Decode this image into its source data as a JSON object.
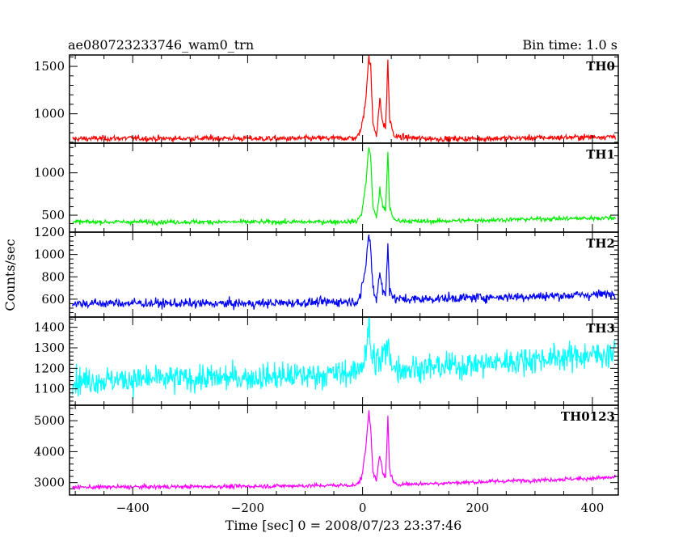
{
  "header": {
    "title": "ae080723233746_wam0_trn",
    "bin_time": "Bin time: 1.0 s"
  },
  "chart_data": {
    "type": "line",
    "xlabel": "Time [sec] 0 = 2008/07/23 23:37:46",
    "ylabel": "Counts/sec",
    "xlim": [
      -510,
      445
    ],
    "x_ticks": [
      -400,
      -200,
      0,
      200,
      400
    ],
    "panels": [
      {
        "name": "TH0",
        "color": "#ff0000",
        "ylim": [
          690,
          1620
        ],
        "y_ticks": [
          1000,
          1500
        ],
        "series": [
          {
            "x": -505,
            "y": 735
          },
          {
            "x": -450,
            "y": 740
          },
          {
            "x": -400,
            "y": 742
          },
          {
            "x": -350,
            "y": 738
          },
          {
            "x": -300,
            "y": 740
          },
          {
            "x": -250,
            "y": 742
          },
          {
            "x": -200,
            "y": 740
          },
          {
            "x": -150,
            "y": 738
          },
          {
            "x": -100,
            "y": 740
          },
          {
            "x": -50,
            "y": 742
          },
          {
            "x": -10,
            "y": 745
          },
          {
            "x": -2,
            "y": 850
          },
          {
            "x": 2,
            "y": 1000
          },
          {
            "x": 6,
            "y": 1200
          },
          {
            "x": 9,
            "y": 1450
          },
          {
            "x": 11,
            "y": 1600
          },
          {
            "x": 14,
            "y": 1500
          },
          {
            "x": 18,
            "y": 900
          },
          {
            "x": 24,
            "y": 780
          },
          {
            "x": 30,
            "y": 1150
          },
          {
            "x": 35,
            "y": 900
          },
          {
            "x": 40,
            "y": 850
          },
          {
            "x": 44,
            "y": 1550
          },
          {
            "x": 47,
            "y": 950
          },
          {
            "x": 55,
            "y": 760
          },
          {
            "x": 100,
            "y": 740
          },
          {
            "x": 150,
            "y": 735
          },
          {
            "x": 200,
            "y": 738
          },
          {
            "x": 250,
            "y": 742
          },
          {
            "x": 300,
            "y": 745
          },
          {
            "x": 350,
            "y": 750
          },
          {
            "x": 400,
            "y": 755
          },
          {
            "x": 440,
            "y": 760
          }
        ],
        "noise": 25
      },
      {
        "name": "TH1",
        "color": "#00ee00",
        "ylim": [
          300,
          1350
        ],
        "y_ticks": [
          500,
          1000
        ],
        "series": [
          {
            "x": -505,
            "y": 420
          },
          {
            "x": -400,
            "y": 420
          },
          {
            "x": -300,
            "y": 420
          },
          {
            "x": -200,
            "y": 420
          },
          {
            "x": -100,
            "y": 420
          },
          {
            "x": -10,
            "y": 425
          },
          {
            "x": -2,
            "y": 520
          },
          {
            "x": 2,
            "y": 680
          },
          {
            "x": 6,
            "y": 900
          },
          {
            "x": 9,
            "y": 1150
          },
          {
            "x": 11,
            "y": 1300
          },
          {
            "x": 14,
            "y": 1200
          },
          {
            "x": 18,
            "y": 600
          },
          {
            "x": 24,
            "y": 470
          },
          {
            "x": 30,
            "y": 800
          },
          {
            "x": 35,
            "y": 600
          },
          {
            "x": 40,
            "y": 550
          },
          {
            "x": 44,
            "y": 1250
          },
          {
            "x": 47,
            "y": 600
          },
          {
            "x": 55,
            "y": 440
          },
          {
            "x": 100,
            "y": 425
          },
          {
            "x": 200,
            "y": 440
          },
          {
            "x": 300,
            "y": 455
          },
          {
            "x": 400,
            "y": 465
          },
          {
            "x": 440,
            "y": 470
          }
        ],
        "noise": 22
      },
      {
        "name": "TH2",
        "color": "#0000ff",
        "ylim": [
          440,
          1200
        ],
        "y_ticks": [
          600,
          800,
          1000,
          1200
        ],
        "series": [
          {
            "x": -505,
            "y": 560
          },
          {
            "x": -400,
            "y": 565
          },
          {
            "x": -300,
            "y": 560
          },
          {
            "x": -200,
            "y": 560
          },
          {
            "x": -100,
            "y": 570
          },
          {
            "x": -10,
            "y": 580
          },
          {
            "x": -2,
            "y": 650
          },
          {
            "x": 2,
            "y": 780
          },
          {
            "x": 6,
            "y": 920
          },
          {
            "x": 9,
            "y": 1100
          },
          {
            "x": 11,
            "y": 1190
          },
          {
            "x": 14,
            "y": 1050
          },
          {
            "x": 18,
            "y": 700
          },
          {
            "x": 24,
            "y": 600
          },
          {
            "x": 30,
            "y": 850
          },
          {
            "x": 35,
            "y": 680
          },
          {
            "x": 40,
            "y": 620
          },
          {
            "x": 44,
            "y": 1100
          },
          {
            "x": 47,
            "y": 700
          },
          {
            "x": 55,
            "y": 600
          },
          {
            "x": 100,
            "y": 600
          },
          {
            "x": 200,
            "y": 615
          },
          {
            "x": 300,
            "y": 625
          },
          {
            "x": 400,
            "y": 640
          },
          {
            "x": 440,
            "y": 650
          }
        ],
        "noise": 35
      },
      {
        "name": "TH3",
        "color": "#00ffff",
        "ylim": [
          1020,
          1450
        ],
        "y_ticks": [
          1100,
          1200,
          1300,
          1400
        ],
        "series": [
          {
            "x": -505,
            "y": 1140
          },
          {
            "x": -400,
            "y": 1145
          },
          {
            "x": -300,
            "y": 1150
          },
          {
            "x": -200,
            "y": 1155
          },
          {
            "x": -100,
            "y": 1165
          },
          {
            "x": -10,
            "y": 1180
          },
          {
            "x": 2,
            "y": 1250
          },
          {
            "x": 9,
            "y": 1350
          },
          {
            "x": 11,
            "y": 1400
          },
          {
            "x": 16,
            "y": 1250
          },
          {
            "x": 30,
            "y": 1230
          },
          {
            "x": 44,
            "y": 1300
          },
          {
            "x": 55,
            "y": 1200
          },
          {
            "x": 100,
            "y": 1200
          },
          {
            "x": 200,
            "y": 1220
          },
          {
            "x": 300,
            "y": 1245
          },
          {
            "x": 400,
            "y": 1265
          },
          {
            "x": 440,
            "y": 1275
          }
        ],
        "noise": 55
      },
      {
        "name": "TH0123",
        "color": "#ff00ff",
        "ylim": [
          2600,
          5500
        ],
        "y_ticks": [
          3000,
          4000,
          5000
        ],
        "series": [
          {
            "x": -505,
            "y": 2850
          },
          {
            "x": -400,
            "y": 2860
          },
          {
            "x": -300,
            "y": 2870
          },
          {
            "x": -200,
            "y": 2880
          },
          {
            "x": -100,
            "y": 2900
          },
          {
            "x": -10,
            "y": 2920
          },
          {
            "x": -2,
            "y": 3150
          },
          {
            "x": 2,
            "y": 3600
          },
          {
            "x": 6,
            "y": 4200
          },
          {
            "x": 9,
            "y": 4900
          },
          {
            "x": 11,
            "y": 5300
          },
          {
            "x": 14,
            "y": 4800
          },
          {
            "x": 18,
            "y": 3400
          },
          {
            "x": 24,
            "y": 3050
          },
          {
            "x": 30,
            "y": 3900
          },
          {
            "x": 35,
            "y": 3300
          },
          {
            "x": 40,
            "y": 3150
          },
          {
            "x": 44,
            "y": 5150
          },
          {
            "x": 47,
            "y": 3400
          },
          {
            "x": 55,
            "y": 2950
          },
          {
            "x": 100,
            "y": 2960
          },
          {
            "x": 200,
            "y": 3020
          },
          {
            "x": 300,
            "y": 3080
          },
          {
            "x": 400,
            "y": 3140
          },
          {
            "x": 440,
            "y": 3170
          }
        ],
        "noise": 55
      }
    ]
  }
}
